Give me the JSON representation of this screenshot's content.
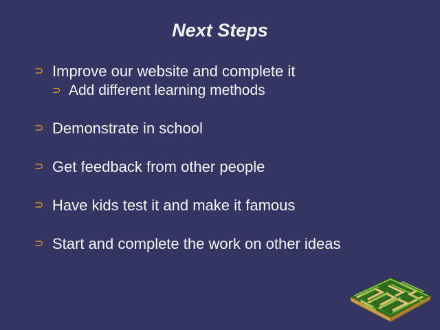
{
  "slide": {
    "title": "Next Steps",
    "bullet_glyph": "⊃",
    "bullet_color": "#e8a020",
    "background_color": "#353563",
    "bullets": [
      {
        "text": "Improve our website and complete it",
        "level": 1
      },
      {
        "text": "Add different learning methods",
        "level": 2
      },
      {
        "text": "Demonstrate in school",
        "level": 1
      },
      {
        "text": "Get feedback from other people",
        "level": 1
      },
      {
        "text": "Have kids test it and make it famous",
        "level": 1
      },
      {
        "text": "Start and complete the work on other ideas",
        "level": 1
      }
    ],
    "image": "maze-clipart"
  }
}
